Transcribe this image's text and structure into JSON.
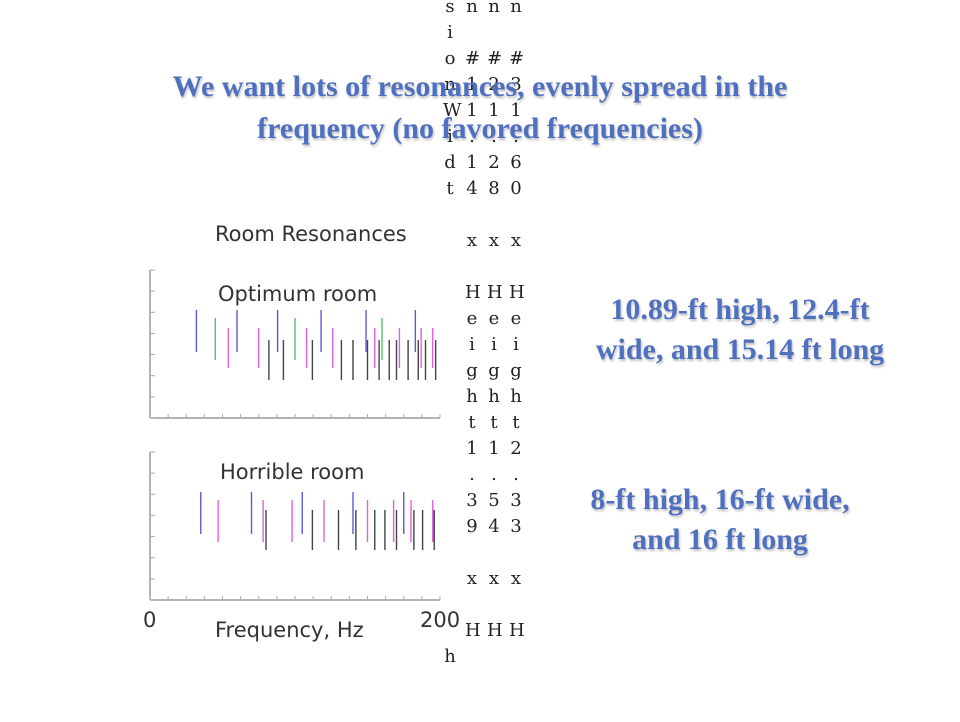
{
  "title": {
    "line1": "We want lots of resonances, evenly spread in the",
    "line2": "frequency (no favored frequencies)"
  },
  "figure": {
    "heading": "Room Resonances",
    "panel1_label": "Optimum room",
    "panel2_label": "Horrible room",
    "x_min_label": "0",
    "x_max_label": "200",
    "x_axis_label": "Frequency, Hz"
  },
  "notes": {
    "optimum_line1": "10.89-ft high, 12.4-ft",
    "optimum_line2": "wide, and 15.14 ft long",
    "horrible_line1": "8-ft high, 16-ft wide,",
    "horrible_line2": "and 16 ft long"
  },
  "column_text": {
    "c0": [
      "s",
      "i",
      "o",
      "n",
      "W",
      "i",
      "d",
      "t",
      "",
      "",
      "",
      "",
      "",
      "",
      "",
      "",
      "",
      "",
      "",
      "",
      "",
      "",
      "",
      "",
      "",
      "h",
      "",
      ""
    ],
    "c1": [
      "n",
      "",
      "#",
      "1",
      "1",
      ".",
      "1",
      "4",
      "",
      "x",
      "",
      "H",
      "e",
      "i",
      "g",
      "h",
      "t",
      "1",
      ".",
      "3",
      "9",
      "",
      "x",
      "",
      "H"
    ],
    "c2": [
      "n",
      "",
      "#",
      "2",
      "1",
      ".",
      "2",
      "8",
      "",
      "x",
      "",
      "H",
      "e",
      "i",
      "g",
      "h",
      "t",
      "1",
      ".",
      "5",
      "4",
      "",
      "x",
      "",
      "H"
    ],
    "c3": [
      "n",
      "",
      "#",
      "3",
      "1",
      ".",
      "6",
      "0",
      "",
      "x",
      "",
      "H",
      "e",
      "i",
      "g",
      "h",
      "t",
      "2",
      ".",
      "3",
      "3",
      "",
      "x",
      "",
      "H"
    ]
  },
  "chart_data": [
    {
      "type": "bar",
      "title": "Optimum room",
      "xlabel": "Frequency, Hz",
      "xlim": [
        0,
        200
      ],
      "series": [
        {
          "color": "#5a5ad8",
          "x": [
            32,
            60,
            88,
            118,
            149,
            183
          ]
        },
        {
          "color": "#50c070",
          "x": [
            45,
            100,
            160
          ]
        },
        {
          "color": "#e060e0",
          "x": [
            54,
            75,
            108,
            126,
            155,
            172,
            187,
            195
          ]
        },
        {
          "color": "#444444",
          "x": [
            82,
            92,
            112,
            132,
            140,
            150,
            158,
            165,
            170,
            178,
            185,
            190,
            197
          ]
        }
      ]
    },
    {
      "type": "bar",
      "title": "Horrible room",
      "xlabel": "Frequency, Hz",
      "xlim": [
        0,
        200
      ],
      "series": [
        {
          "color": "#5a5ad8",
          "x": [
            35,
            70,
            105,
            140,
            175
          ]
        },
        {
          "color": "#e060e0",
          "x": [
            47,
            78,
            98,
            120,
            150,
            168,
            180,
            195
          ]
        },
        {
          "color": "#444444",
          "x": [
            80,
            112,
            130,
            142,
            155,
            162,
            170,
            182,
            188,
            196
          ]
        }
      ]
    }
  ]
}
